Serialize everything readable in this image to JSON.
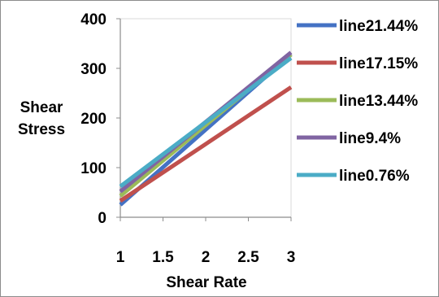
{
  "chart_data": {
    "type": "line",
    "xlabel": "Shear Rate",
    "ylabel_lines": [
      "Shear",
      "Stress"
    ],
    "xlim": [
      1,
      3
    ],
    "ylim": [
      0,
      400
    ],
    "x_ticks": [
      "1",
      "1.5",
      "2",
      "2.5",
      "3"
    ],
    "x_tick_values": [
      1,
      1.5,
      2,
      2.5,
      3
    ],
    "y_ticks": [
      "0",
      "100",
      "200",
      "300",
      "400"
    ],
    "y_tick_values": [
      0,
      100,
      200,
      300,
      400
    ],
    "grid": "horizontal-none",
    "legend_position": "right",
    "series": [
      {
        "name": "line21.44%",
        "color": "#4472c4",
        "x": [
          1,
          3
        ],
        "y": [
          25,
          328
        ]
      },
      {
        "name": "line17.15%",
        "color": "#c0504d",
        "x": [
          1,
          3
        ],
        "y": [
          33,
          262
        ]
      },
      {
        "name": "line13.44%",
        "color": "#9bbb59",
        "x": [
          1,
          3
        ],
        "y": [
          43,
          328
        ]
      },
      {
        "name": "line9.4%",
        "color": "#8064a2",
        "x": [
          1,
          3
        ],
        "y": [
          52,
          332
        ]
      },
      {
        "name": "line0.76%",
        "color": "#4bacc6",
        "x": [
          1,
          3
        ],
        "y": [
          62,
          321
        ]
      }
    ]
  }
}
